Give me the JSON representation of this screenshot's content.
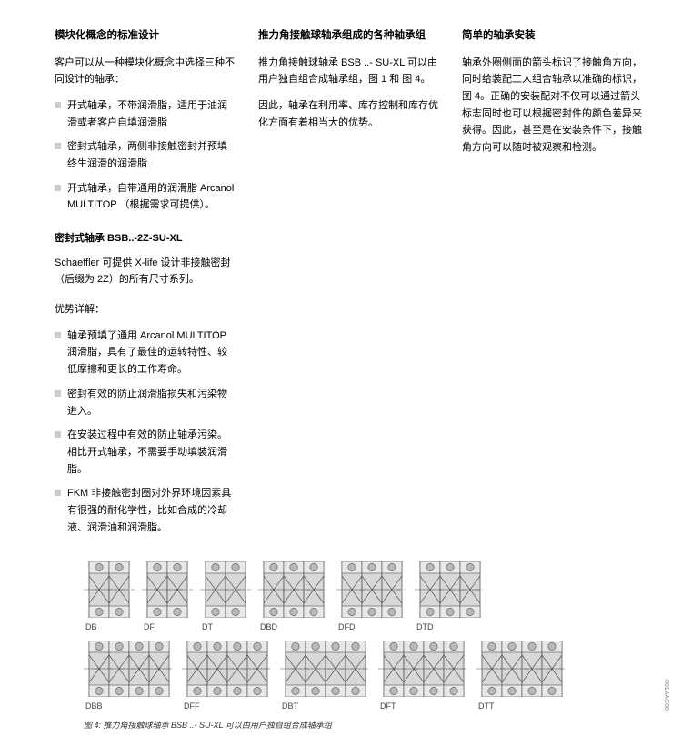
{
  "col1": {
    "h1": "模块化概念的标准设计",
    "p1": "客户可以从一种模块化概念中选择三种不同设计的轴承：",
    "list1": [
      "开式轴承，不带润滑脂，适用于油润滑或者客户自填润滑脂",
      "密封式轴承，两侧非接触密封并预填终生润滑的润滑脂",
      "开式轴承，自带通用的润滑脂 Arcanol MULTITOP （根据需求可提供）。"
    ],
    "h2": "密封式轴承 BSB..-2Z-SU-XL",
    "p2": "Schaeffler 可提供 X-life 设计非接触密封 （后缀为 2Z）的所有尺寸系列。",
    "h3": "优势详解：",
    "list2": [
      "轴承预填了通用 Arcanol MULTITOP 润滑脂，具有了最佳的运转特性、较低摩擦和更长的工作寿命。",
      "密封有效的防止润滑脂损失和污染物进入。",
      "在安装过程中有效的防止轴承污染。相比开式轴承，不需要手动填装润滑脂。",
      "FKM 非接触密封圈对外界环境因素具有很强的耐化学性，比如合成的冷却液、润滑油和润滑脂。"
    ]
  },
  "col2": {
    "h1": "推力角接触球轴承组成的各种轴承组",
    "p1": "推力角接触球轴承 BSB ..- SU-XL 可以由用户独自组合成轴承组，图 1 和 图 4。",
    "p2": "因此，轴承在利用率、库存控制和库存优化方面有着相当大的优势。"
  },
  "col3": {
    "h1": "简单的轴承安装",
    "p1": "轴承外圈侧面的箭头标识了接触角方向，同时给装配工人组合轴承以准确的标识，图 4。正确的安装配对不仅可以通过箭头标志同时也可以根据密封件的颜色差异来获得。因此，甚至是在安装条件下，接触角方向可以随时被观察和检测。"
  },
  "diagrams": {
    "row1": [
      {
        "label": "DB",
        "units": 2,
        "pattern": "db"
      },
      {
        "label": "DF",
        "units": 2,
        "pattern": "df"
      },
      {
        "label": "DT",
        "units": 2,
        "pattern": "dt"
      },
      {
        "label": "DBD",
        "units": 3,
        "pattern": "dbd"
      },
      {
        "label": "DFD",
        "units": 3,
        "pattern": "dfd"
      },
      {
        "label": "DTD",
        "units": 3,
        "pattern": "dtd"
      }
    ],
    "row2": [
      {
        "label": "DBB",
        "units": 4,
        "pattern": "dbb"
      },
      {
        "label": "DFF",
        "units": 4,
        "pattern": "dff"
      },
      {
        "label": "DBT",
        "units": 4,
        "pattern": "dbt"
      },
      {
        "label": "DFT",
        "units": 4,
        "pattern": "dft"
      },
      {
        "label": "DTT",
        "units": 4,
        "pattern": "dtt"
      }
    ],
    "id": "001AAC08",
    "caption": "图 4: 推力角接触球轴承 BSB ..- SU-XL 可以由用户独自组合成轴承组",
    "colors": {
      "stroke": "#555555",
      "fill": "#d8d8d8",
      "ball": "#b8b8b8"
    },
    "unit_w": 22,
    "unit_h": 62
  }
}
